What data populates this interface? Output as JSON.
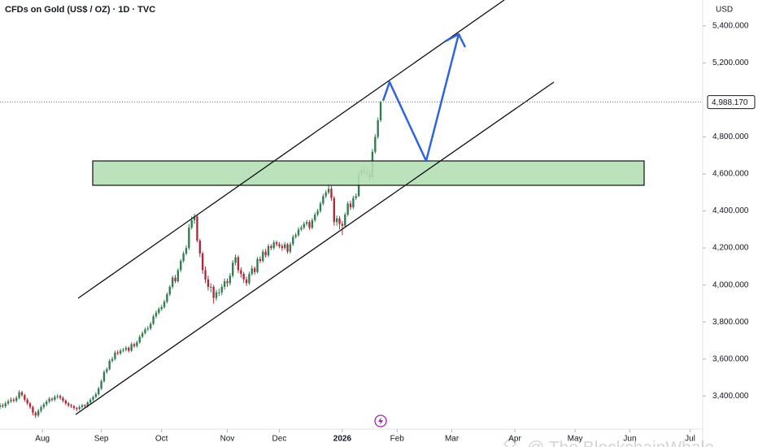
{
  "chart_data": {
    "type": "candlestick",
    "title": "CFDs on Gold (US$ / OZ) · 1D · TVC",
    "y_axis_label": "USD",
    "up_color": "#2e7d4f",
    "down_color": "#b2283b",
    "xlim": [
      0,
      256
    ],
    "xticks": [
      {
        "value": 15.5,
        "label": "Aug"
      },
      {
        "value": 37,
        "label": "Sep"
      },
      {
        "value": 59,
        "label": "Oct"
      },
      {
        "value": 83,
        "label": "Nov"
      },
      {
        "value": 102,
        "label": "Dec"
      },
      {
        "value": 125,
        "label": "2026"
      },
      {
        "value": 145,
        "label": "Feb"
      },
      {
        "value": 165,
        "label": "Mar"
      },
      {
        "value": 188,
        "label": "Apr"
      },
      {
        "value": 210,
        "label": "May"
      },
      {
        "value": 230,
        "label": "Jun"
      },
      {
        "value": 252,
        "label": "Jul"
      }
    ],
    "ylim": [
      3221,
      5540
    ],
    "yticks": [
      {
        "value": 3400,
        "label": "3,400.000"
      },
      {
        "value": 3600,
        "label": "3,600.000"
      },
      {
        "value": 3800,
        "label": "3,800.000"
      },
      {
        "value": 4000,
        "label": "4,000.000"
      },
      {
        "value": 4200,
        "label": "4,200.000"
      },
      {
        "value": 4400,
        "label": "4,400.000"
      },
      {
        "value": 4600,
        "label": "4,600.000"
      },
      {
        "value": 4800,
        "label": "4,800.000"
      },
      {
        "value": 5200,
        "label": "5,200.000"
      },
      {
        "value": 5400,
        "label": "5,400.000"
      }
    ],
    "last_price": {
      "value": 4988.17,
      "label": "4,988.170"
    },
    "watermark": "@ The BlockchainWhale",
    "open": [
      3340,
      3350,
      3345,
      3360,
      3372,
      3380,
      3375,
      3390,
      3420,
      3405,
      3380,
      3360,
      3340,
      3310,
      3295,
      3320,
      3340,
      3355,
      3370,
      3385,
      3380,
      3395,
      3400,
      3390,
      3375,
      3360,
      3350,
      3345,
      3335,
      3330,
      3340,
      3350,
      3345,
      3365,
      3380,
      3395,
      3410,
      3440,
      3480,
      3530,
      3545,
      3590,
      3600,
      3635,
      3630,
      3645,
      3650,
      3660,
      3645,
      3680,
      3670,
      3690,
      3720,
      3740,
      3760,
      3765,
      3790,
      3830,
      3850,
      3870,
      3880,
      3910,
      3950,
      3990,
      4040,
      4020,
      4080,
      4130,
      4170,
      4200,
      4310,
      4350,
      4370,
      4240,
      4170,
      4080,
      4030,
      3990,
      3990,
      3930,
      3960,
      3960,
      3990,
      4020,
      4010,
      4050,
      4120,
      4150,
      4080,
      4060,
      4030,
      4010,
      4060,
      4090,
      4070,
      4140,
      4130,
      4180,
      4160,
      4210,
      4200,
      4230,
      4220,
      4210,
      4200,
      4220,
      4180,
      4220,
      4260,
      4270,
      4300,
      4310,
      4330,
      4340,
      4310,
      4350,
      4380,
      4400,
      4440,
      4480,
      4500,
      4520,
      4470,
      4340,
      4360,
      4330,
      4320,
      4380,
      4440,
      4420,
      4470,
      4480,
      4600,
      4620,
      4610,
      4600,
      4580,
      4720,
      4800,
      4890
    ],
    "high": [
      3362,
      3360,
      3370,
      3382,
      3392,
      3390,
      3400,
      3432,
      3428,
      3412,
      3390,
      3368,
      3348,
      3318,
      3330,
      3350,
      3365,
      3380,
      3395,
      3392,
      3405,
      3410,
      3408,
      3398,
      3382,
      3368,
      3358,
      3352,
      3342,
      3350,
      3358,
      3356,
      3372,
      3388,
      3402,
      3420,
      3450,
      3490,
      3540,
      3555,
      3600,
      3612,
      3645,
      3648,
      3655,
      3660,
      3670,
      3668,
      3690,
      3688,
      3700,
      3730,
      3750,
      3770,
      3778,
      3800,
      3840,
      3862,
      3880,
      3892,
      3920,
      3960,
      4000,
      4050,
      4055,
      4090,
      4140,
      4182,
      4215,
      4330,
      4370,
      4385,
      4380,
      4250,
      4180,
      4100,
      4050,
      4010,
      4000,
      3975,
      3980,
      4005,
      4035,
      4035,
      4065,
      4135,
      4165,
      4160,
      4095,
      4070,
      4045,
      4072,
      4105,
      4100,
      4152,
      4155,
      4192,
      4195,
      4222,
      4220,
      4242,
      4240,
      4232,
      4222,
      4232,
      4228,
      4232,
      4272,
      4282,
      4312,
      4322,
      4342,
      4352,
      4350,
      4362,
      4392,
      4412,
      4452,
      4492,
      4512,
      4550,
      4535,
      4480,
      4375,
      4372,
      4345,
      4392,
      4452,
      4455,
      4482,
      4495,
      4615,
      4640,
      4645,
      4630,
      4620,
      4735,
      4815,
      4905,
      4995
    ],
    "low": [
      3330,
      3335,
      3335,
      3350,
      3362,
      3365,
      3365,
      3382,
      3395,
      3370,
      3350,
      3330,
      3295,
      3280,
      3285,
      3310,
      3330,
      3345,
      3360,
      3370,
      3372,
      3385,
      3380,
      3365,
      3350,
      3340,
      3335,
      3325,
      3318,
      3322,
      3332,
      3336,
      3338,
      3358,
      3372,
      3388,
      3402,
      3432,
      3472,
      3520,
      3538,
      3580,
      3592,
      3620,
      3622,
      3636,
      3640,
      3635,
      3638,
      3660,
      3662,
      3682,
      3712,
      3732,
      3750,
      3756,
      3782,
      3820,
      3840,
      3860,
      3872,
      3900,
      3940,
      3980,
      4010,
      4012,
      4070,
      4120,
      4160,
      4190,
      4300,
      4330,
      4230,
      4150,
      4060,
      4010,
      3970,
      3960,
      3900,
      3915,
      3940,
      3945,
      3975,
      3990,
      3998,
      4040,
      4105,
      4065,
      4040,
      4010,
      3995,
      4000,
      4050,
      4055,
      4062,
      4118,
      4120,
      4148,
      4150,
      4188,
      4190,
      4208,
      4198,
      4185,
      4190,
      4168,
      4170,
      4210,
      4250,
      4260,
      4290,
      4300,
      4320,
      4298,
      4300,
      4340,
      4370,
      4390,
      4430,
      4470,
      4490,
      4455,
      4320,
      4320,
      4300,
      4270,
      4310,
      4370,
      4405,
      4410,
      4460,
      4475,
      4590,
      4598,
      4585,
      4560,
      4575,
      4710,
      4790,
      4880
    ],
    "close": [
      3350,
      3345,
      3360,
      3372,
      3380,
      3375,
      3390,
      3420,
      3405,
      3380,
      3360,
      3340,
      3310,
      3295,
      3320,
      3340,
      3355,
      3370,
      3385,
      3380,
      3395,
      3400,
      3390,
      3375,
      3360,
      3350,
      3345,
      3335,
      3330,
      3340,
      3350,
      3345,
      3365,
      3380,
      3395,
      3410,
      3440,
      3480,
      3530,
      3545,
      3590,
      3600,
      3635,
      3630,
      3645,
      3650,
      3660,
      3645,
      3680,
      3670,
      3690,
      3720,
      3740,
      3760,
      3765,
      3790,
      3830,
      3850,
      3870,
      3880,
      3910,
      3950,
      3990,
      4040,
      4020,
      4080,
      4130,
      4170,
      4200,
      4310,
      4350,
      4370,
      4240,
      4170,
      4080,
      4030,
      3990,
      3990,
      3930,
      3960,
      3960,
      3990,
      4020,
      4010,
      4050,
      4120,
      4150,
      4080,
      4060,
      4030,
      4010,
      4060,
      4090,
      4070,
      4140,
      4130,
      4180,
      4160,
      4210,
      4200,
      4230,
      4220,
      4210,
      4200,
      4220,
      4180,
      4220,
      4260,
      4270,
      4300,
      4310,
      4330,
      4340,
      4310,
      4350,
      4380,
      4400,
      4440,
      4480,
      4500,
      4520,
      4470,
      4340,
      4360,
      4330,
      4320,
      4380,
      4440,
      4420,
      4470,
      4480,
      4600,
      4620,
      4610,
      4600,
      4580,
      4720,
      4800,
      4890,
      4988
    ]
  }
}
